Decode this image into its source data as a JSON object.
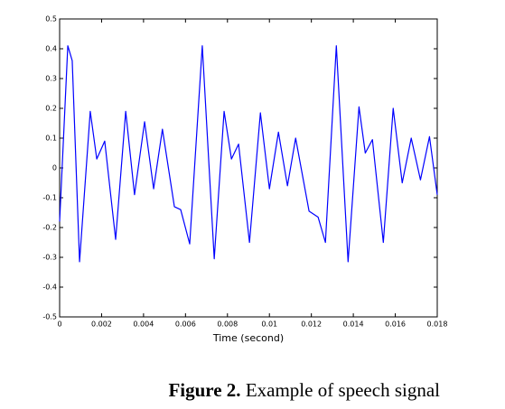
{
  "chart_data": {
    "type": "line",
    "xlabel": "Time (second)",
    "caption_label": "Figure 2.",
    "caption_text": "Example of speech signal",
    "x": [
      0,
      0.00039,
      0.0006,
      0.00095,
      0.00146,
      0.00177,
      0.00215,
      0.00267,
      0.00315,
      0.00357,
      0.00405,
      0.00448,
      0.0049,
      0.00547,
      0.00577,
      0.0062,
      0.0068,
      0.00737,
      0.00784,
      0.00819,
      0.00853,
      0.00905,
      0.00957,
      0.01,
      0.01043,
      0.01086,
      0.01125,
      0.01189,
      0.01232,
      0.01267,
      0.01319,
      0.01375,
      0.01427,
      0.01457,
      0.01491,
      0.01543,
      0.0159,
      0.01633,
      0.01676,
      0.0172,
      0.01763,
      0.018
    ],
    "values": [
      -0.18,
      0.41,
      0.36,
      -0.315,
      0.19,
      0.03,
      0.09,
      -0.24,
      0.19,
      -0.09,
      0.155,
      -0.07,
      0.13,
      -0.13,
      -0.14,
      -0.255,
      0.41,
      -0.305,
      0.19,
      0.03,
      0.08,
      -0.25,
      0.185,
      -0.07,
      0.12,
      -0.06,
      0.1,
      -0.145,
      -0.165,
      -0.25,
      0.41,
      -0.315,
      0.205,
      0.05,
      0.095,
      -0.25,
      0.2,
      -0.05,
      0.1,
      -0.04,
      0.105,
      -0.09
    ],
    "color": "#0000ff",
    "xlim": [
      0,
      0.018
    ],
    "ylim": [
      -0.5,
      0.5
    ],
    "xticks": [
      0,
      0.002,
      0.004,
      0.006,
      0.008,
      0.01,
      0.012,
      0.014,
      0.016,
      0.018
    ],
    "yticks": [
      -0.5,
      -0.4,
      -0.3,
      -0.2,
      -0.1,
      0,
      0.1,
      0.2,
      0.3,
      0.4,
      0.5
    ]
  }
}
